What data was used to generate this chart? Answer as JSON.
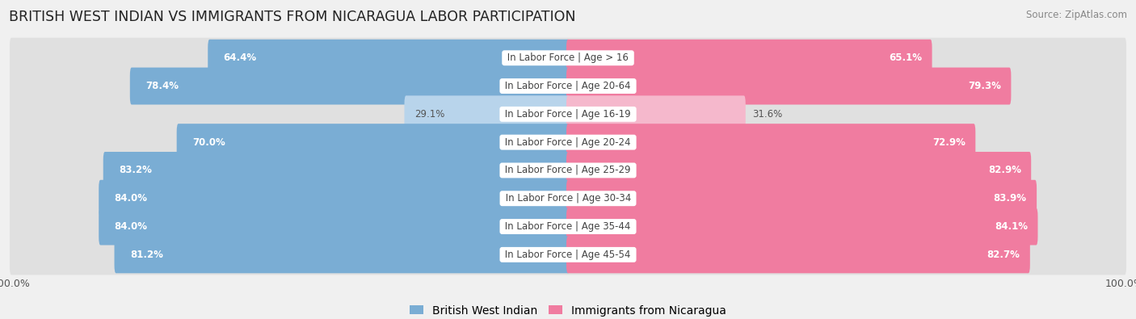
{
  "title": "BRITISH WEST INDIAN VS IMMIGRANTS FROM NICARAGUA LABOR PARTICIPATION",
  "source": "Source: ZipAtlas.com",
  "categories": [
    "In Labor Force | Age > 16",
    "In Labor Force | Age 20-64",
    "In Labor Force | Age 16-19",
    "In Labor Force | Age 20-24",
    "In Labor Force | Age 25-29",
    "In Labor Force | Age 30-34",
    "In Labor Force | Age 35-44",
    "In Labor Force | Age 45-54"
  ],
  "british_values": [
    64.4,
    78.4,
    29.1,
    70.0,
    83.2,
    84.0,
    84.0,
    81.2
  ],
  "nicaragua_values": [
    65.1,
    79.3,
    31.6,
    72.9,
    82.9,
    83.9,
    84.1,
    82.7
  ],
  "british_color": "#7aadd4",
  "british_color_light": "#b8d4eb",
  "nicaragua_color": "#f07ca0",
  "nicaragua_color_light": "#f5b8cc",
  "bg_color": "#f0f0f0",
  "row_bg_color": "#e0e0e0",
  "bar_height": 0.72,
  "max_value": 100.0,
  "title_fontsize": 12.5,
  "label_fontsize": 8.5,
  "value_fontsize": 8.5,
  "tick_fontsize": 9,
  "legend_fontsize": 10
}
